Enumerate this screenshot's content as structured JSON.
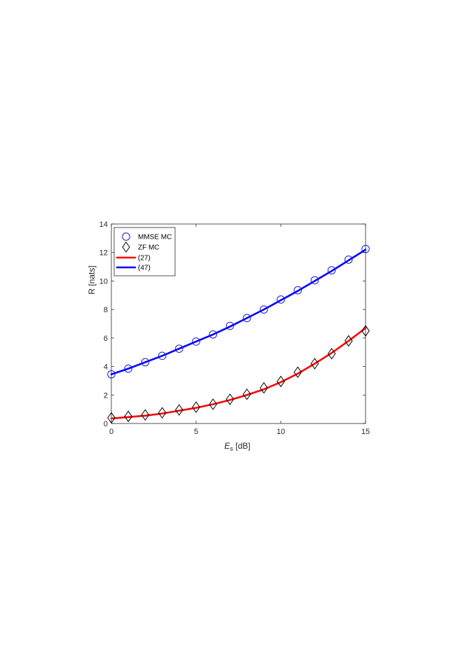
{
  "chart_data": {
    "type": "line",
    "xlabel": {
      "main": "E",
      "sub": "s",
      "suffix": " [dB]"
    },
    "ylabel": "R [nats]",
    "xlim": [
      0,
      15
    ],
    "ylim": [
      0,
      14
    ],
    "xticks": [
      0,
      5,
      10,
      15
    ],
    "yticks": [
      0,
      2,
      4,
      6,
      8,
      10,
      12,
      14
    ],
    "grid": false,
    "legend_position": "top-left",
    "series": [
      {
        "name": "MMSE MC",
        "style": "markers",
        "marker": "circle",
        "color": "#1a1ad6",
        "x": [
          0,
          1,
          2,
          3,
          4,
          5,
          6,
          7,
          8,
          9,
          10,
          11,
          12,
          13,
          14,
          15
        ],
        "values": [
          3.45,
          3.85,
          4.3,
          4.75,
          5.25,
          5.75,
          6.25,
          6.85,
          7.4,
          8.0,
          8.7,
          9.35,
          10.05,
          10.75,
          11.5,
          12.25
        ]
      },
      {
        "name": "ZF MC",
        "style": "markers",
        "marker": "diamond",
        "color": "#000000",
        "x": [
          0,
          1,
          2,
          3,
          4,
          5,
          6,
          7,
          8,
          9,
          10,
          11,
          12,
          13,
          14,
          15
        ],
        "values": [
          0.4,
          0.5,
          0.6,
          0.75,
          0.95,
          1.15,
          1.35,
          1.7,
          2.05,
          2.5,
          2.95,
          3.6,
          4.2,
          4.9,
          5.8,
          6.5
        ]
      },
      {
        "name": "(27)",
        "style": "line",
        "color": "#ff0000",
        "x": [
          0,
          1,
          2,
          3,
          4,
          5,
          6,
          7,
          8,
          9,
          10,
          11,
          12,
          13,
          14,
          15
        ],
        "values": [
          0.35,
          0.45,
          0.55,
          0.7,
          0.9,
          1.1,
          1.35,
          1.65,
          2.0,
          2.4,
          2.9,
          3.5,
          4.2,
          4.95,
          5.8,
          6.7
        ]
      },
      {
        "name": "(47)",
        "style": "line",
        "color": "#0000ff",
        "x": [
          0,
          1,
          2,
          3,
          4,
          5,
          6,
          7,
          8,
          9,
          10,
          11,
          12,
          13,
          14,
          15
        ],
        "values": [
          3.45,
          3.85,
          4.3,
          4.75,
          5.25,
          5.75,
          6.25,
          6.8,
          7.4,
          8.0,
          8.65,
          9.3,
          10.0,
          10.7,
          11.45,
          12.2
        ]
      }
    ]
  }
}
